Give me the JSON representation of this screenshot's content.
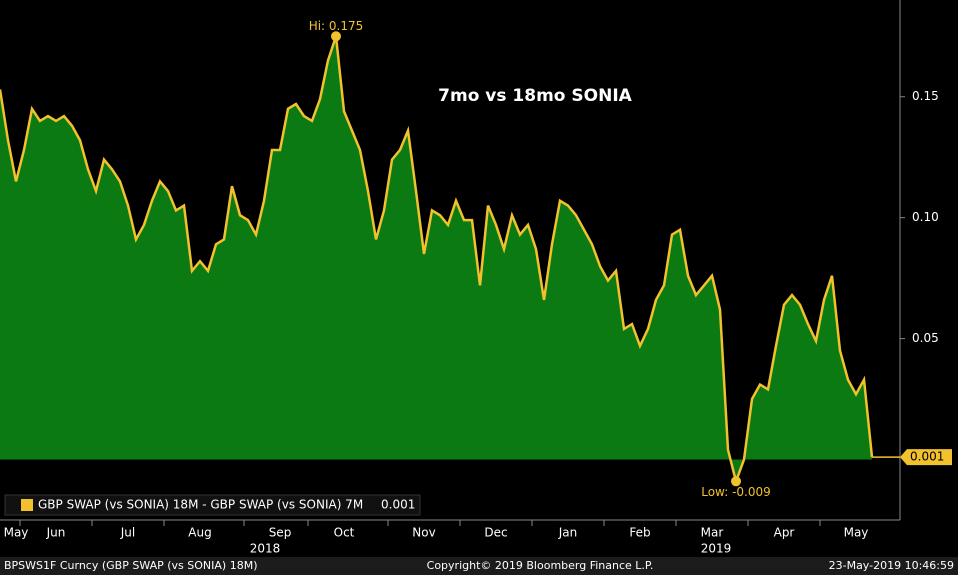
{
  "chart_data": {
    "type": "area",
    "title": "7mo vs 18mo SONIA",
    "categories": [
      null,
      null,
      "May",
      null,
      null,
      null,
      null,
      "Jun",
      null,
      null,
      null,
      null,
      null,
      null,
      null,
      null,
      "Jul",
      null,
      null,
      null,
      null,
      null,
      null,
      null,
      null,
      "Aug",
      null,
      null,
      null,
      null,
      null,
      null,
      null,
      null,
      null,
      "Sep",
      null,
      null,
      null,
      null,
      null,
      null,
      null,
      "Oct",
      null,
      null,
      null,
      null,
      null,
      null,
      null,
      null,
      null,
      "Nov",
      null,
      null,
      null,
      null,
      null,
      null,
      null,
      null,
      "Dec",
      null,
      null,
      null,
      null,
      null,
      null,
      null,
      null,
      "Jan",
      null,
      null,
      null,
      null,
      null,
      null,
      null,
      null,
      "Feb",
      null,
      null,
      null,
      null,
      null,
      null,
      null,
      null,
      "Mar",
      null,
      null,
      null,
      null,
      null,
      null,
      null,
      null,
      "Apr",
      null,
      null,
      null,
      null,
      null,
      null,
      null,
      null,
      "May",
      null,
      null
    ],
    "year_labels": [
      "2018",
      "2019"
    ],
    "series": [
      {
        "name": "GBP SWAP (vs SONIA) 18M - GBP SWAP (vs SONIA) 7M",
        "color": "#f2c12e",
        "fill": "#0b7a12",
        "values": [
          0.153,
          0.132,
          0.115,
          0.128,
          0.145,
          0.14,
          0.142,
          0.14,
          0.142,
          0.138,
          0.132,
          0.12,
          0.111,
          0.124,
          0.12,
          0.115,
          0.105,
          0.091,
          0.097,
          0.107,
          0.115,
          0.111,
          0.103,
          0.105,
          0.078,
          0.082,
          0.078,
          0.089,
          0.091,
          0.113,
          0.101,
          0.099,
          0.093,
          0.107,
          0.128,
          0.128,
          0.145,
          0.147,
          0.142,
          0.14,
          0.149,
          0.165,
          0.175,
          0.144,
          0.136,
          0.128,
          0.111,
          0.091,
          0.103,
          0.124,
          0.128,
          0.136,
          0.111,
          0.085,
          0.103,
          0.101,
          0.097,
          0.107,
          0.099,
          0.099,
          0.072,
          0.105,
          0.097,
          0.087,
          0.101,
          0.093,
          0.097,
          0.087,
          0.066,
          0.089,
          0.107,
          0.105,
          0.101,
          0.095,
          0.089,
          0.08,
          0.074,
          0.078,
          0.054,
          0.056,
          0.047,
          0.054,
          0.066,
          0.072,
          0.093,
          0.095,
          0.076,
          0.068,
          0.072,
          0.076,
          0.062,
          0.004,
          -0.009,
          0,
          0.025,
          0.031,
          0.029,
          0.047,
          0.064,
          0.068,
          0.064,
          0.056,
          0.049,
          0.066,
          0.076,
          0.045,
          0.033,
          0.027,
          0.033,
          0.001
        ]
      }
    ],
    "annotations": [
      {
        "index": 42,
        "text": "Hi: 0.175"
      },
      {
        "index": 92,
        "text": "Low: -0.009"
      }
    ],
    "ylim": [
      -0.025,
      0.19
    ],
    "yticks": [
      0.05,
      {
        "value": 0.1,
        "label": "0.10"
      },
      0.15
    ],
    "footer": {
      "left": "BPSWS1F Curncy (GBP SWAP (vs SONIA) 18M)",
      "center": "Copyright© 2019 Bloomberg Finance L.P.",
      "right": "23-May-2019 10:46:59"
    }
  }
}
